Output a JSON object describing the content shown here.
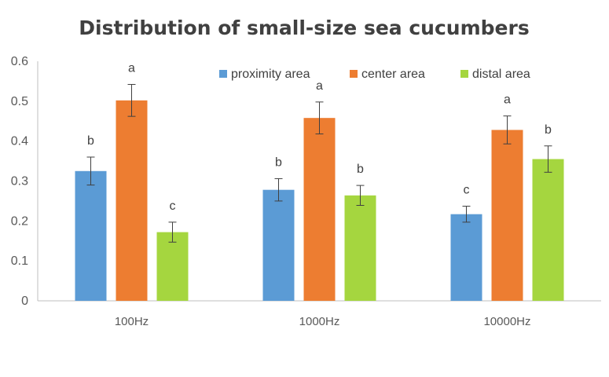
{
  "chart_data": {
    "type": "bar",
    "title": "Distribution of small-size sea cucumbers",
    "xlabel": "",
    "ylabel": "",
    "ylim": [
      0,
      0.6
    ],
    "yticks": [
      "0",
      "0.1",
      "0.2",
      "0.3",
      "0.4",
      "0.5",
      "0.6"
    ],
    "categories": [
      "100Hz",
      "1000Hz",
      "10000Hz"
    ],
    "legend_position": "top-right",
    "grid": false,
    "series": [
      {
        "name": "proximity area",
        "color": "#5b9bd5",
        "values": [
          0.325,
          0.278,
          0.217
        ],
        "errors": [
          0.035,
          0.028,
          0.02
        ],
        "labels": [
          "b",
          "b",
          "c"
        ]
      },
      {
        "name": "center area",
        "color": "#ed7d31",
        "values": [
          0.502,
          0.458,
          0.428
        ],
        "errors": [
          0.04,
          0.04,
          0.035
        ],
        "labels": [
          "a",
          "a",
          "a"
        ]
      },
      {
        "name": "distal area",
        "color": "#a5d63f",
        "values": [
          0.172,
          0.264,
          0.355
        ],
        "errors": [
          0.025,
          0.025,
          0.033
        ],
        "labels": [
          "c",
          "b",
          "b"
        ]
      }
    ]
  }
}
